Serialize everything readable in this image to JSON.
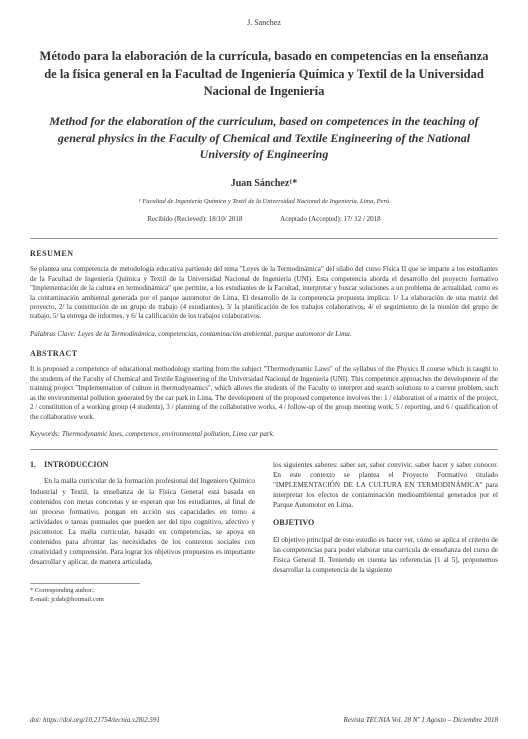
{
  "author_top": "J. Sanchez",
  "title_es": "Método para la elaboración de la currícula, basado en competencias en la enseñanza de la física general en la Facultad de Ingeniería Química y Textil de la Universidad Nacional de Ingeniería",
  "title_en": "Method for the elaboration of the curriculum, based on competences in the teaching of general physics in the Faculty of Chemical and Textile Engineering of the National University of Engineering",
  "author_name": "Juan Sánchez¹*",
  "affiliation": "¹ Facultad de Ingeniería Química y Textil de la Universidad Nacional de Ingeniería. Lima, Perú",
  "date_received": "Recibido (Recieved): 18/10/ 2018",
  "date_accepted": "Aceptado (Accepted): 17/ 12 / 2018",
  "resumen_heading": "RESUMEN",
  "resumen_text": "Se plantea una competencia de metodología educativa partiendo del tema \"Leyes de la Termodinámica\" del sílabo del curso Física II que se imparte a los estudiantes de la Facultad de Ingeniería Química y Textil de la Universidad Nacional de Ingeniería (UNI). Esta competencia aborda el desarrollo del proyecto formativo \"Implementación de la cultura en termodinámica\" que permite, a los estudiantes de la Facultad, interpretar y buscar soluciones a un problema de actualidad, como es la contaminación ambiental generada por el parque automotor de Lima. El desarrollo de la competencia propuesta implica: 1/ La elaboración de una matriz del proyecto, 2/ la constitución de un grupo de trabajo (4 estudiantes), 3/ la planificación de los trabajos colaborativos, 4/ el seguimiento de la reunión del grupo de trabajo, 5/ la entrega de informes, y 6/ la calificación de los trabajos colaborativos.",
  "palabras_clave": "Palabras Clave: Leyes de la Termodinámica, competencias, contaminación ambiental, parque automotor de Lima.",
  "abstract_heading": "ABSTRACT",
  "abstract_text": "It is proposed a competence of educational methodology starting from the subject \"Thermodynamic Laws\" of the syllabus of the Physics II course which is taught to the students of the Faculty of Chemical and Textile Engineering of the Universidad Nacional de Ingeniería (UNI). This competence approaches the development of the training project \"Implementation of culture in thermodynamics\", which allows the students of the Faculty to interpret and search solutions to a current problem, such as the environmental pollution generated by the car park in Lima. The development of the proposed competence involves the: 1 / elaboration of a matrix of the project, 2 / constitution of a working group (4 students), 3 / planning of the collaborative works, 4 / follow-up of the group meeting work, 5 / reporting, and 6 / qualification of the collaborative work.",
  "keywords": "Keywords: Thermodynamic laws, competence, environmental pollution, Lima car park.",
  "intro_heading": "1. INTRODUCCION",
  "intro_text": "En la malla curricular de la formación profesional del Ingeniero Químico Industrial y Textil, la enseñanza de la Física General está basada en contenidos con metas concretas y se esperan que los estudiantes, al final de un proceso formativo, pongan en acción sus capacidades en torno a actividades o tareas puntuales que pueden ser del tipo cognitivo, afectivo y psicomotor. La malla curricular, basado en competencias, se apoya en contenidos para afrontar las necesidades de los contextos sociales con creatividad y comprensión. Para lograr los objetivos propuestos es importante desarrollar y aplicar, de manera articulada,",
  "col2_text1": "los siguientes saberes: saber ser, saber convivir, saber hacer y saber conocer. En este contexto se plantea el Proyecto Formativo titulado \"IMPLEMENTACIÓN DE LA CULTURA EN TERMODINÁMICA\" para interpretar los efectos de contaminación medioambiental generados por el Parque Automotor en Lima.",
  "objetivo_heading": "OBJETIVO",
  "objetivo_text": "El objetivo principal de este estudio es hacer ver, cómo se aplica el criterio de las competencias para poder elaborar una currícula de enseñanza del curso de Física General II. Teniendo en cuenta las referencias [1 al 5], proponemos desarrollar la competencia de la siguiente",
  "corr_label": "* Corresponding author.:",
  "corr_email": "E-mail: jcdab@hotmail.com",
  "doi": "doi: https://doi.org/10.21754/tecnia.v28i2.591",
  "journal": "Revista TECNIA Vol. 28 Nº 1 Agosto – Diciembre 2018"
}
